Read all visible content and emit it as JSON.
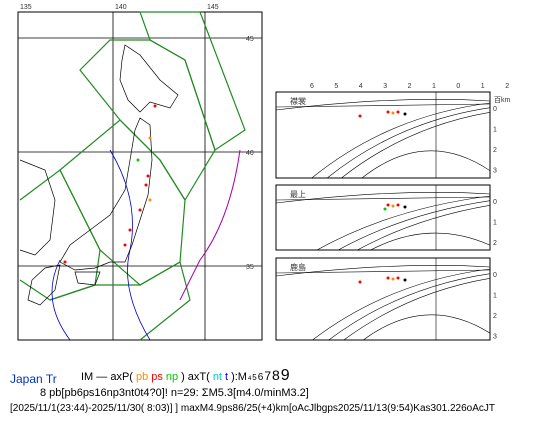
{
  "map": {
    "lon_labels": [
      "135",
      "140",
      "145"
    ],
    "lat_labels": [
      "45",
      "40",
      "35"
    ]
  },
  "sections": {
    "x_labels": [
      "6",
      "5",
      "4",
      "3",
      "2",
      "1",
      "0",
      "1",
      "2"
    ],
    "unit": "百km",
    "depth_labels": [
      "0",
      "1",
      "2",
      "3"
    ],
    "panels": [
      {
        "label": "襟裳"
      },
      {
        "label": "最上"
      },
      {
        "label": "鹿島"
      }
    ]
  },
  "footer": {
    "region": "Japan Tr",
    "legend": [
      {
        "text": "IM — axP(",
        "color": "#000000"
      },
      {
        "text": "pb",
        "color": "#ff8c00"
      },
      {
        "text": "ps",
        "color": "#ff0000"
      },
      {
        "text": "np",
        "color": "#00cc00"
      },
      {
        "text": ") axT(",
        "color": "#000000"
      },
      {
        "text": "nt",
        "color": "#00cccc"
      },
      {
        "text": "t",
        "color": "#0000ff"
      },
      {
        "text": "):M",
        "color": "#000000"
      }
    ],
    "magnitudes": [
      "4",
      "5",
      "6",
      "7",
      "8",
      "9"
    ],
    "line2": "8 pb[pb6ps16np3nt0t4?0]! n=29: ΣM5.3[m4.0/minM3.2]",
    "line3": "[2025/11/1(23:44)-2025/11/30( 8:03)] ] maxM4.9ps86/25(+4)km[oAcJlbgps2025/11/13(9:54)Kas301.226oAcJT"
  }
}
